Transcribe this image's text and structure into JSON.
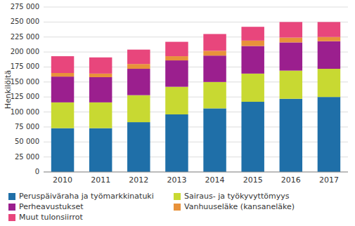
{
  "chart_data": {
    "type": "bar",
    "stacked": true,
    "y_label": "Henkilöitä",
    "categories": [
      "2010",
      "2011",
      "2012",
      "2013",
      "2014",
      "2015",
      "2016",
      "2017"
    ],
    "series": [
      {
        "name": "Peruspäiväraha ja työmarkkinatuki",
        "color": "#1f6fa8",
        "values": [
          73000,
          73000,
          83000,
          96000,
          106000,
          117000,
          122000,
          125000
        ]
      },
      {
        "name": "Sairaus- ja työkyvyttömyys",
        "color": "#c8d932",
        "values": [
          43000,
          43000,
          45000,
          46000,
          44000,
          47000,
          47000,
          47000
        ]
      },
      {
        "name": "Perheavustukset",
        "color": "#9b1f8e",
        "values": [
          43000,
          42000,
          44000,
          44000,
          44000,
          46000,
          47000,
          46000
        ]
      },
      {
        "name": "Vanhuuseläke (kansaneläke)",
        "color": "#e8923a",
        "values": [
          6000,
          6000,
          8000,
          7000,
          8000,
          9000,
          8000,
          7000
        ]
      },
      {
        "name": "Muut tulonsiirrot",
        "color": "#e8467c",
        "values": [
          28000,
          27000,
          24000,
          24000,
          28000,
          23000,
          26000,
          25000
        ]
      }
    ],
    "ylim": [
      0,
      275000
    ],
    "yticks": [
      0,
      {
        "value": 25000,
        "label": "25 000"
      },
      {
        "value": 50000,
        "label": "50 000"
      },
      {
        "value": 75000,
        "label": "75 000"
      },
      {
        "value": 100000,
        "label": "100 000"
      },
      {
        "value": 125000,
        "label": "125 000"
      },
      {
        "value": 150000,
        "label": "150 000"
      },
      {
        "value": 175000,
        "label": "175 000"
      },
      {
        "value": 200000,
        "label": "200 000"
      },
      {
        "value": 225000,
        "label": "225 000"
      },
      {
        "value": 250000,
        "label": "250 000"
      },
      {
        "value": 275000,
        "label": "275 000"
      }
    ],
    "grid": true,
    "legend": "bottom"
  }
}
